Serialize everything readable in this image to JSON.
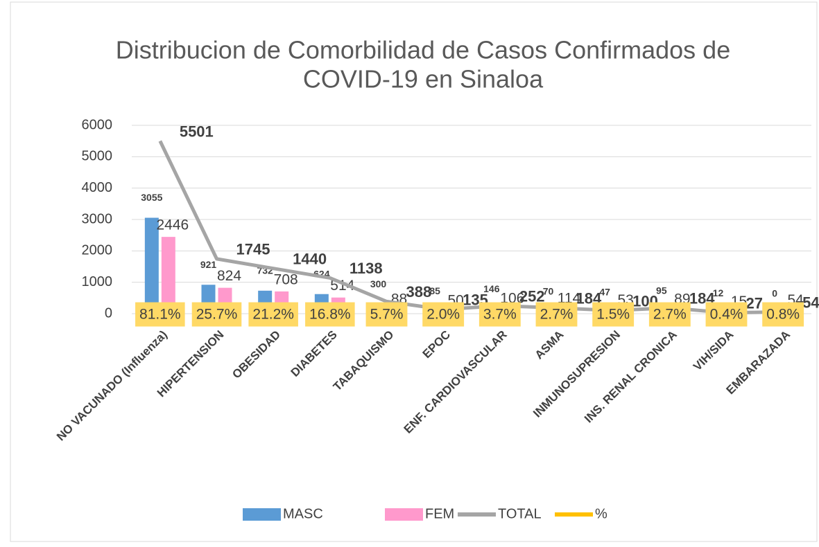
{
  "chart_data": {
    "type": "combo",
    "title": [
      "Distribucion de Comorbilidad de Casos Confirmados de",
      "COVID-19 en Sinaloa"
    ],
    "categories": [
      "NO VACUNADO (Influenza)",
      "HIPERTENSION",
      "OBESIDAD",
      "DIABETES",
      "TABAQUISMO",
      "EPOC",
      "ENF. CARDIOVASCULAR",
      "ASMA",
      "INMUNOSUPRESION",
      "INS. RENAL CRONICA",
      "VIH/SIDA",
      "EMBARAZADA"
    ],
    "series": [
      {
        "name": "MASC",
        "type": "bar",
        "color": "#5b9bd5",
        "values": [
          3055,
          921,
          732,
          624,
          300,
          85,
          146,
          70,
          47,
          95,
          12,
          0
        ]
      },
      {
        "name": "FEM",
        "type": "bar",
        "color": "#ff99cc",
        "values": [
          2446,
          824,
          708,
          514,
          88,
          50,
          106,
          114,
          53,
          89,
          15,
          54
        ]
      },
      {
        "name": "TOTAL",
        "type": "line",
        "color": "#a5a5a5",
        "values": [
          5501,
          1745,
          1440,
          1138,
          388,
          135,
          252,
          184,
          100,
          184,
          27,
          54
        ]
      },
      {
        "name": "%",
        "type": "line",
        "color": "#ffc000",
        "values": [
          81.1,
          25.7,
          21.2,
          16.8,
          5.7,
          2.0,
          3.7,
          2.7,
          1.5,
          2.7,
          0.4,
          0.8
        ],
        "value_labels": [
          "81.1%",
          "25.7%",
          "21.2%",
          "16.8%",
          "5.7%",
          "2.0%",
          "3.7%",
          "2.7%",
          "1.5%",
          "2.7%",
          "0.4%",
          "0.8%"
        ]
      }
    ],
    "ylim": [
      0,
      6000
    ],
    "yticks": [
      0,
      1000,
      2000,
      3000,
      4000,
      5000,
      6000
    ],
    "grid": true,
    "legend": "bottom"
  }
}
